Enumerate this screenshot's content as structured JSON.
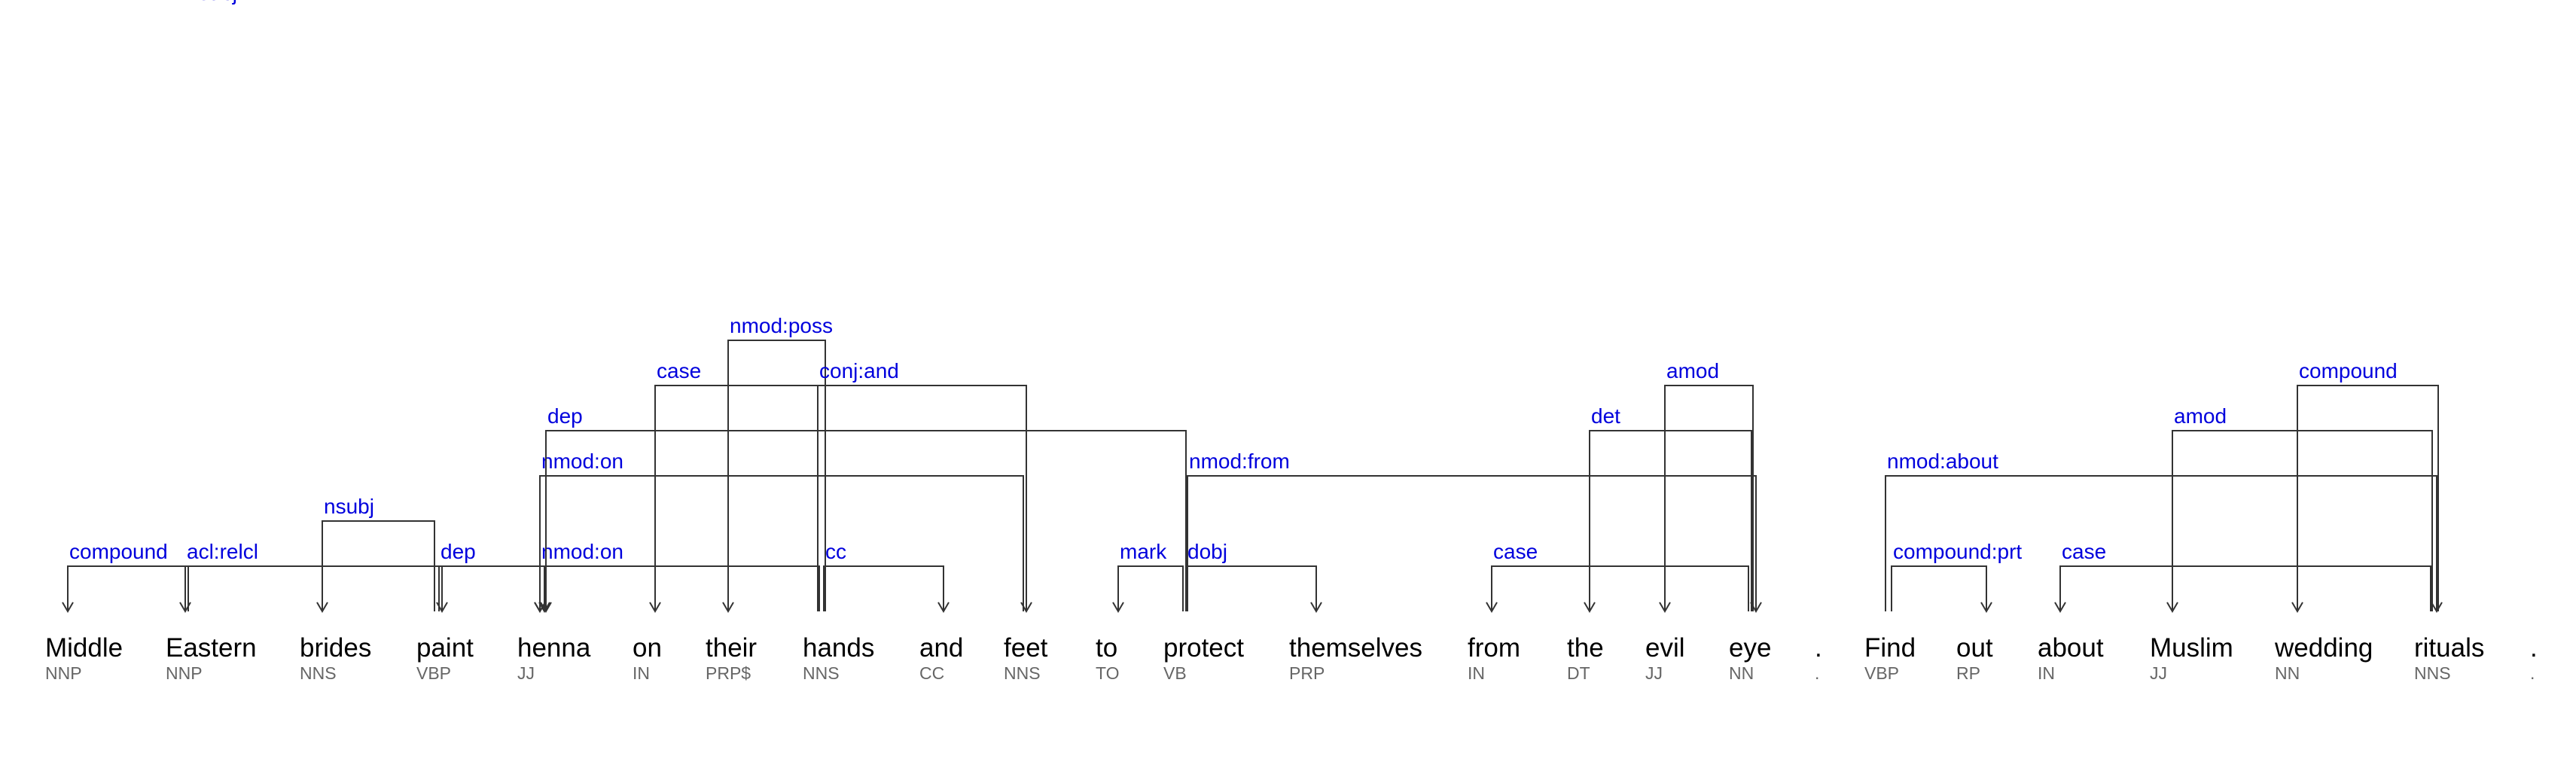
{
  "colors": {
    "relation": "#0000dd",
    "line": "#333333",
    "word": "#000000",
    "tag": "#666666"
  },
  "tokens": [
    {
      "word": "Middle",
      "tag": "NNP"
    },
    {
      "word": "Eastern",
      "tag": "NNP"
    },
    {
      "word": "brides",
      "tag": "NNS"
    },
    {
      "word": "paint",
      "tag": "VBP"
    },
    {
      "word": "henna",
      "tag": "JJ"
    },
    {
      "word": "on",
      "tag": "IN"
    },
    {
      "word": "their",
      "tag": "PRP$"
    },
    {
      "word": "hands",
      "tag": "NNS"
    },
    {
      "word": "and",
      "tag": "CC"
    },
    {
      "word": "feet",
      "tag": "NNS"
    },
    {
      "word": "to",
      "tag": "TO"
    },
    {
      "word": "protect",
      "tag": "VB"
    },
    {
      "word": "themselves",
      "tag": "PRP"
    },
    {
      "word": "from",
      "tag": "IN"
    },
    {
      "word": "the",
      "tag": "DT"
    },
    {
      "word": "evil",
      "tag": "JJ"
    },
    {
      "word": "eye",
      "tag": "NN"
    },
    {
      "word": ".",
      "tag": "."
    },
    {
      "word": "Find",
      "tag": "VBP"
    },
    {
      "word": "out",
      "tag": "RP"
    },
    {
      "word": "about",
      "tag": "IN"
    },
    {
      "word": "Muslim",
      "tag": "JJ"
    },
    {
      "word": "wedding",
      "tag": "NN"
    },
    {
      "word": "rituals",
      "tag": "NNS"
    },
    {
      "word": ".",
      "tag": "."
    }
  ],
  "arcs": [
    {
      "label": "compound",
      "head": 1,
      "dep": 0
    },
    {
      "label": "acl:relcl",
      "head": 1,
      "dep": 3
    },
    {
      "label": "nsubj",
      "head": 3,
      "dep": 2
    },
    {
      "label": "dep",
      "head": 3,
      "dep": 4
    },
    {
      "label": "nmod:on",
      "head": 7,
      "dep": 4
    },
    {
      "label": "nmod:on",
      "head": 9,
      "dep": 4
    },
    {
      "label": "dep",
      "head": 11,
      "dep": 4
    },
    {
      "label": "case",
      "head": 7,
      "dep": 5
    },
    {
      "label": "nmod:poss",
      "head": 7,
      "dep": 6
    },
    {
      "label": "cc",
      "head": 7,
      "dep": 8
    },
    {
      "label": "conj:and",
      "head": 7,
      "dep": 9
    },
    {
      "label": "mark",
      "head": 11,
      "dep": 10
    },
    {
      "label": "dobj",
      "head": 11,
      "dep": 12
    },
    {
      "label": "nmod:from",
      "head": 11,
      "dep": 16
    },
    {
      "label": "case",
      "head": 16,
      "dep": 13
    },
    {
      "label": "det",
      "head": 16,
      "dep": 14
    },
    {
      "label": "amod",
      "head": 16,
      "dep": 15
    },
    {
      "label": "nsubj",
      "head": 18,
      "dep": 1
    },
    {
      "label": "compound:prt",
      "head": 18,
      "dep": 19
    },
    {
      "label": "nmod:about",
      "head": 18,
      "dep": 23
    },
    {
      "label": "case",
      "head": 23,
      "dep": 20
    },
    {
      "label": "amod",
      "head": 23,
      "dep": 21
    },
    {
      "label": "compound",
      "head": 23,
      "dep": 22
    }
  ]
}
